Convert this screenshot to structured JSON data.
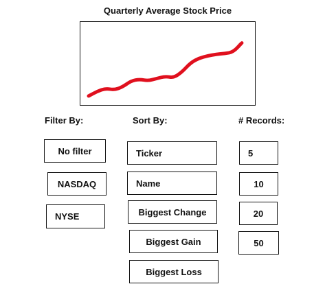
{
  "chart": {
    "title": "Quarterly Average Stock Price",
    "line_color": "#e0101e"
  },
  "chart_data": {
    "type": "line",
    "title": "Quarterly Average Stock Price",
    "xlabel": "",
    "ylabel": "",
    "series": [
      {
        "values": [
          8,
          14,
          18,
          16,
          20,
          28,
          30,
          28,
          31,
          34,
          32,
          40,
          52,
          58,
          61,
          63,
          64,
          66,
          78
        ]
      }
    ],
    "ylim": [
      0,
      100
    ],
    "grid": false,
    "legend": false
  },
  "filter": {
    "label": "Filter By:",
    "options": [
      "No filter",
      "NASDAQ",
      "NYSE"
    ]
  },
  "sort": {
    "label": "Sort By:",
    "options": [
      "Ticker",
      "Name",
      "Biggest Change",
      "Biggest Gain",
      "Biggest Loss"
    ]
  },
  "records": {
    "label": "# Records:",
    "options": [
      "5",
      "10",
      "20",
      "50"
    ]
  }
}
